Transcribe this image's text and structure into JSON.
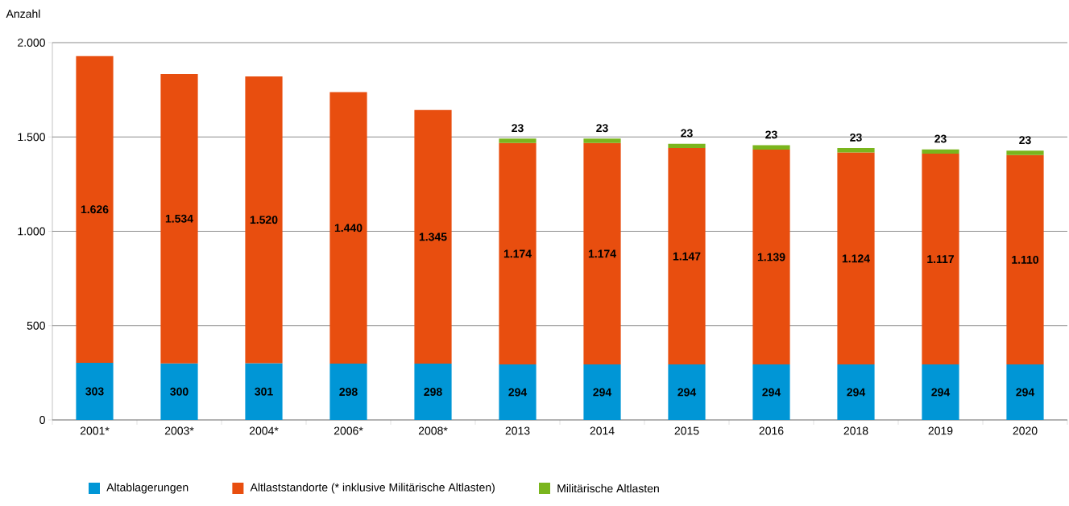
{
  "chart_data": {
    "type": "bar",
    "stacked": true,
    "ylabel": "Anzahl",
    "categories": [
      "2001*",
      "2003*",
      "2004*",
      "2006*",
      "2008*",
      "2013",
      "2014",
      "2015",
      "2016",
      "2018",
      "2019",
      "2020"
    ],
    "series": [
      {
        "name": "Altablagerungen",
        "color": "#0096d6",
        "values": [
          303,
          300,
          301,
          298,
          298,
          294,
          294,
          294,
          294,
          294,
          294,
          294
        ],
        "value_labels": [
          "303",
          "300",
          "301",
          "298",
          "298",
          "294",
          "294",
          "294",
          "294",
          "294",
          "294",
          "294"
        ]
      },
      {
        "name": "Altlaststandorte (* inklusive Militärische Altlasten)",
        "color": "#e84e0f",
        "values": [
          1626,
          1534,
          1520,
          1440,
          1345,
          1174,
          1174,
          1147,
          1139,
          1124,
          1117,
          1110
        ],
        "value_labels": [
          "1.626",
          "1.534",
          "1.520",
          "1.440",
          "1.345",
          "1.174",
          "1.174",
          "1.147",
          "1.139",
          "1.124",
          "1.117",
          "1.110"
        ]
      },
      {
        "name": "Militärische Altlasten",
        "color": "#7ab51d",
        "values": [
          null,
          null,
          null,
          null,
          null,
          23,
          23,
          23,
          23,
          23,
          23,
          23
        ],
        "value_labels": [
          null,
          null,
          null,
          null,
          null,
          "23",
          "23",
          "23",
          "23",
          "23",
          "23",
          "23"
        ]
      }
    ],
    "ylim": [
      0,
      2000
    ],
    "yticks": [
      0,
      500,
      {
        "value": 1000,
        "label": "1.000"
      },
      {
        "value": 1500,
        "label": "1.500"
      },
      {
        "value": 2000,
        "label": "2.000"
      }
    ],
    "grid": "y",
    "legend": "bottom"
  }
}
